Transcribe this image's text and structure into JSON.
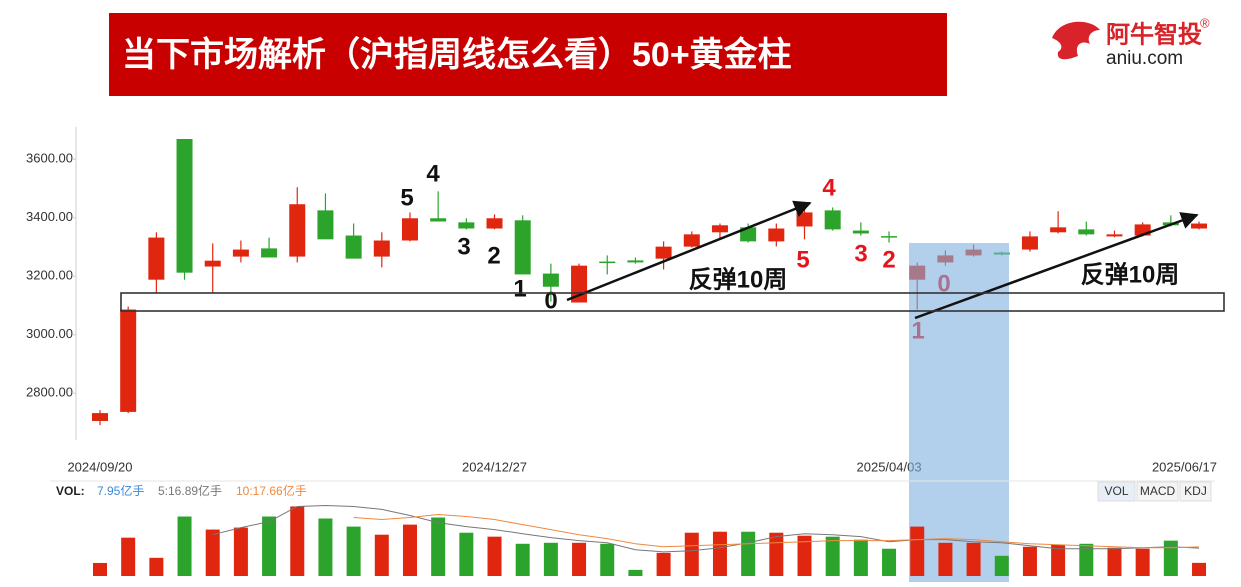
{
  "header": {
    "title": "当下市场解析（沪指周线怎么看）50+黄金柱",
    "logo_name": "阿牛智投",
    "logo_mark": "®",
    "logo_site": "aniu.com"
  },
  "chart_data": {
    "type": "candlestick",
    "categories": [
      "2024/09/20",
      null,
      null,
      null,
      null,
      null,
      null,
      null,
      null,
      null,
      null,
      null,
      null,
      null,
      "2024/12/27",
      null,
      null,
      null,
      null,
      null,
      null,
      null,
      null,
      null,
      null,
      null,
      null,
      null,
      "2025/04/03",
      null,
      null,
      null,
      null,
      null,
      null,
      null,
      null,
      null,
      null,
      "2025/06/17"
    ],
    "open": [
      2705,
      2736,
      3188,
      3669,
      3233,
      3267,
      3295,
      3267,
      3425,
      3339,
      3267,
      3322,
      3398,
      3384,
      3363,
      3391,
      3209,
      3110,
      3250,
      3254,
      3260,
      3301,
      3350,
      3367,
      3319,
      3370,
      3425,
      3356,
      3337,
      3188,
      3247,
      3271,
      3281,
      3291,
      3350,
      3360,
      3336,
      3339,
      3384,
      3363
    ],
    "high": [
      2742,
      3096,
      3350,
      3669,
      3312,
      3322,
      3332,
      3504,
      3483,
      3380,
      3350,
      3418,
      3490,
      3398,
      3411,
      3408,
      3243,
      3243,
      3271,
      3264,
      3319,
      3353,
      3380,
      3380,
      3380,
      3435,
      3435,
      3384,
      3353,
      3247,
      3288,
      3308,
      3284,
      3353,
      3422,
      3387,
      3356,
      3384,
      3408,
      3387
    ],
    "low": [
      2691,
      2732,
      3144,
      3188,
      3144,
      3247,
      3264,
      3247,
      3326,
      3260,
      3230,
      3319,
      3387,
      3360,
      3360,
      3206,
      3113,
      3110,
      3206,
      3243,
      3223,
      3298,
      3326,
      3315,
      3302,
      3326,
      3356,
      3339,
      3315,
      3086,
      3236,
      3267,
      3271,
      3284,
      3346,
      3339,
      3333,
      3336,
      3370,
      3360
    ],
    "close": [
      2732,
      3086,
      3332,
      3212,
      3253,
      3291,
      3264,
      3446,
      3326,
      3260,
      3322,
      3398,
      3387,
      3363,
      3398,
      3206,
      3164,
      3236,
      3247,
      3247,
      3301,
      3343,
      3374,
      3319,
      3363,
      3418,
      3360,
      3346,
      3335,
      3236,
      3271,
      3291,
      3274,
      3336,
      3367,
      3343,
      3343,
      3377,
      3374,
      3380
    ],
    "up_color": "#e0260f",
    "down_color": "#2ca42c",
    "ylim": [
      2640,
      3710
    ],
    "yticks": [
      {
        "value": 2800,
        "label": "2800.00"
      },
      {
        "value": 3000,
        "label": "3000.00"
      },
      {
        "value": 3200,
        "label": "3200.00"
      },
      {
        "value": 3400,
        "label": "3400.00"
      },
      {
        "value": 3600,
        "label": "3600.00"
      }
    ],
    "annotations": [
      {
        "text": "5",
        "color": "#111111"
      },
      {
        "text": "4",
        "color": "#111111"
      },
      {
        "text": "3",
        "color": "#111111"
      },
      {
        "text": "2",
        "color": "#111111"
      },
      {
        "text": "1",
        "color": "#111111"
      },
      {
        "text": "0",
        "color": "#111111"
      },
      {
        "text": "反弹10周",
        "color": "#111111"
      },
      {
        "text": "4",
        "color": "#e8141c"
      },
      {
        "text": "5",
        "color": "#e8141c"
      },
      {
        "text": "3",
        "color": "#e8141c"
      },
      {
        "text": "2",
        "color": "#e8141c"
      },
      {
        "text": "0",
        "color": "#e8141c"
      },
      {
        "text": "1",
        "color": "#e8141c"
      },
      {
        "text": "反弹10周",
        "color": "#111111"
      }
    ],
    "volume": {
      "label": "VOL:",
      "current_label": "7.95亿手",
      "current_color": "#3b8ad9",
      "ylim": [
        0,
        46
      ],
      "values": [
        7.9,
        23.2,
        11.0,
        36.0,
        28.1,
        29.3,
        36.0,
        42.1,
        34.8,
        29.9,
        25.0,
        31.1,
        35.4,
        26.2,
        23.8,
        19.5,
        20.1,
        20.1,
        19.5,
        3.7,
        14.0,
        26.2,
        26.8,
        26.8,
        26.2,
        24.4,
        23.8,
        22.0,
        16.5,
        29.9,
        20.1,
        20.1,
        12.2,
        17.7,
        18.9,
        19.5,
        17.1,
        16.5,
        21.4,
        7.95
      ],
      "ma": [
        {
          "name": "5:16.89亿手",
          "color": "#777777",
          "values": [
            null,
            null,
            null,
            null,
            25.0,
            29.3,
            32.9,
            42.1,
            42.7,
            42.1,
            40.3,
            36.6,
            32.3,
            29.9,
            28.1,
            25.6,
            23.2,
            21.4,
            20.1,
            15.9,
            14.6,
            15.3,
            17.1,
            20.1,
            23.8,
            25.6,
            25.0,
            23.8,
            20.7,
            22.0,
            22.0,
            20.7,
            20.1,
            18.3,
            16.5,
            16.5,
            16.5,
            17.1,
            17.7,
            16.89
          ]
        },
        {
          "name": "10:17.66亿手",
          "color": "#f0883e",
          "values": [
            null,
            null,
            null,
            null,
            null,
            null,
            null,
            null,
            null,
            35.4,
            34.2,
            35.4,
            37.2,
            36.0,
            34.2,
            31.1,
            28.1,
            25.0,
            22.6,
            19.5,
            17.7,
            18.3,
            18.9,
            19.5,
            20.1,
            20.7,
            21.4,
            21.4,
            21.4,
            22.0,
            22.6,
            22.0,
            20.7,
            19.5,
            18.9,
            18.3,
            17.7,
            17.1,
            17.1,
            17.66
          ]
        }
      ]
    },
    "tabs": [
      "VOL",
      "MACD",
      "KDJ"
    ]
  }
}
